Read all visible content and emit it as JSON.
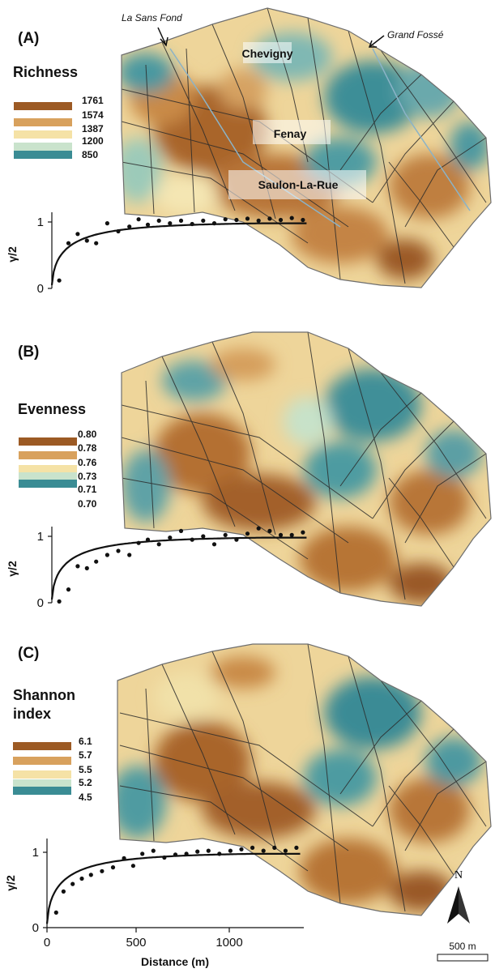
{
  "panels": [
    {
      "id": "A",
      "letter": "(A)",
      "title_lines": [
        "Richness"
      ],
      "legend_values": [
        "1761",
        "1574",
        "1387",
        "1200",
        "850"
      ],
      "legend_colors": [
        "#9c5a24",
        "#d8a15d",
        "#f5e2a6",
        "#c9e3cc",
        "#3a8c94"
      ],
      "towns": [
        "Chevigny",
        "Fenay",
        "Saulon-La-Rue"
      ],
      "annotations": [
        "La Sans Fond",
        "Grand Fossé"
      ],
      "variogram": {
        "y_ticks": [
          "0",
          "1"
        ],
        "ylabel": "γ/2",
        "points": [
          [
            40,
            0.12
          ],
          [
            90,
            0.68
          ],
          [
            140,
            0.82
          ],
          [
            190,
            0.72
          ],
          [
            240,
            0.68
          ],
          [
            300,
            0.98
          ],
          [
            360,
            0.86
          ],
          [
            420,
            0.93
          ],
          [
            470,
            1.04
          ],
          [
            520,
            0.96
          ],
          [
            580,
            1.02
          ],
          [
            640,
            0.98
          ],
          [
            700,
            1.02
          ],
          [
            760,
            0.97
          ],
          [
            820,
            1.02
          ],
          [
            880,
            0.98
          ],
          [
            940,
            1.04
          ],
          [
            1000,
            1.03
          ],
          [
            1060,
            1.05
          ],
          [
            1120,
            1.02
          ],
          [
            1180,
            1.05
          ],
          [
            1240,
            1.03
          ],
          [
            1300,
            1.06
          ],
          [
            1360,
            1.03
          ]
        ]
      }
    },
    {
      "id": "B",
      "letter": "(B)",
      "title_lines": [
        "Evenness"
      ],
      "legend_values": [
        "0.80",
        "0.78",
        "0.76",
        "0.73",
        "0.71",
        "0.70"
      ],
      "legend_colors": [
        "#9c5a24",
        "#d8a15d",
        "#f5e2a6",
        "#c9e3cc",
        "#3a8c94"
      ],
      "towns": [],
      "annotations": [],
      "variogram": {
        "y_ticks": [
          "0",
          "1"
        ],
        "ylabel": "γ/2",
        "points": [
          [
            40,
            0.02
          ],
          [
            90,
            0.2
          ],
          [
            140,
            0.55
          ],
          [
            190,
            0.52
          ],
          [
            240,
            0.62
          ],
          [
            300,
            0.72
          ],
          [
            360,
            0.78
          ],
          [
            420,
            0.72
          ],
          [
            470,
            0.9
          ],
          [
            520,
            0.95
          ],
          [
            580,
            0.88
          ],
          [
            640,
            0.98
          ],
          [
            700,
            1.08
          ],
          [
            760,
            0.95
          ],
          [
            820,
            1.0
          ],
          [
            880,
            0.88
          ],
          [
            940,
            1.02
          ],
          [
            1000,
            0.95
          ],
          [
            1060,
            1.04
          ],
          [
            1120,
            1.12
          ],
          [
            1180,
            1.08
          ],
          [
            1240,
            1.02
          ],
          [
            1300,
            1.02
          ],
          [
            1360,
            1.06
          ]
        ]
      }
    },
    {
      "id": "C",
      "letter": "(C)",
      "title_lines": [
        "Shannon",
        "index"
      ],
      "legend_values": [
        "6.1",
        "5.7",
        "5.5",
        "5.2",
        "4.5"
      ],
      "legend_colors": [
        "#9c5a24",
        "#d8a15d",
        "#f5e2a6",
        "#c9e3cc",
        "#3a8c94"
      ],
      "towns": [],
      "annotations": [],
      "variogram": {
        "y_ticks": [
          "0",
          "1"
        ],
        "ylabel": "γ/2",
        "points": [
          [
            50,
            0.2
          ],
          [
            90,
            0.48
          ],
          [
            140,
            0.58
          ],
          [
            190,
            0.65
          ],
          [
            240,
            0.7
          ],
          [
            300,
            0.75
          ],
          [
            360,
            0.8
          ],
          [
            420,
            0.92
          ],
          [
            470,
            0.82
          ],
          [
            520,
            0.98
          ],
          [
            580,
            1.02
          ],
          [
            640,
            0.93
          ],
          [
            700,
            0.97
          ],
          [
            760,
            0.98
          ],
          [
            820,
            1.01
          ],
          [
            880,
            1.02
          ],
          [
            940,
            0.98
          ],
          [
            1000,
            1.02
          ],
          [
            1060,
            1.04
          ],
          [
            1120,
            1.06
          ],
          [
            1180,
            1.02
          ],
          [
            1240,
            1.06
          ],
          [
            1300,
            1.02
          ],
          [
            1360,
            1.06
          ]
        ]
      }
    }
  ],
  "x_axis": {
    "label": "Distance (m)",
    "ticks": [
      "0",
      "500",
      "1000"
    ]
  },
  "north_label": "N",
  "scale_bar_label": "500 m"
}
